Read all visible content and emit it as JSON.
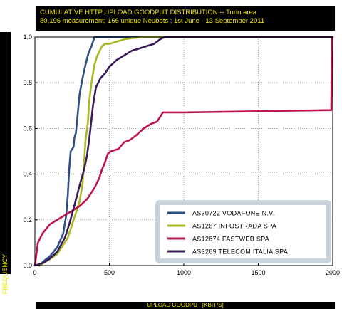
{
  "chart_data": {
    "type": "line",
    "title_line1": "CUMULATIVE HTTP UPLOAD GOODPUT DISTRIBUTION -- Turin area",
    "title_line2": "80,196 measurement; 166 unique Neubots ; 1st June - 13 September 2011",
    "xlabel": "UPLOAD GOODPUT [KBIT/S]",
    "ylabel": "FREQUENCY",
    "xlim": [
      0,
      2000
    ],
    "ylim": [
      0,
      1.0
    ],
    "xticks": [
      "0",
      "500",
      "1000",
      "1500",
      "2000"
    ],
    "xtick_values": [
      0,
      500,
      1000,
      1500,
      2000
    ],
    "yticks": [
      "0.0",
      "0.2",
      "0.4",
      "0.6",
      "0.8",
      "1.0"
    ],
    "ytick_values": [
      0.0,
      0.2,
      0.4,
      0.6,
      0.8,
      1.0
    ],
    "grid": true,
    "legend_position": "lower-right",
    "series": [
      {
        "name": "AS30722 VODAFONE N.V.",
        "color": "#2e4f86",
        "points": [
          [
            30,
            0
          ],
          [
            60,
            0.02
          ],
          [
            100,
            0.04
          ],
          [
            150,
            0.08
          ],
          [
            190,
            0.14
          ],
          [
            210,
            0.22
          ],
          [
            220,
            0.3
          ],
          [
            230,
            0.42
          ],
          [
            240,
            0.5
          ],
          [
            250,
            0.51
          ],
          [
            260,
            0.52
          ],
          [
            265,
            0.56
          ],
          [
            275,
            0.58
          ],
          [
            290,
            0.68
          ],
          [
            300,
            0.75
          ],
          [
            320,
            0.82
          ],
          [
            340,
            0.88
          ],
          [
            360,
            0.93
          ],
          [
            380,
            0.96
          ],
          [
            395,
            0.99
          ],
          [
            400,
            1.0
          ],
          [
            2000,
            1.0
          ]
        ]
      },
      {
        "name": "AS1267 INFOSTRADA SPA",
        "color": "#a8b820",
        "points": [
          [
            30,
            0
          ],
          [
            80,
            0.02
          ],
          [
            150,
            0.05
          ],
          [
            220,
            0.12
          ],
          [
            270,
            0.22
          ],
          [
            300,
            0.28
          ],
          [
            320,
            0.36
          ],
          [
            330,
            0.45
          ],
          [
            340,
            0.55
          ],
          [
            355,
            0.62
          ],
          [
            365,
            0.72
          ],
          [
            380,
            0.8
          ],
          [
            400,
            0.88
          ],
          [
            420,
            0.92
          ],
          [
            450,
            0.96
          ],
          [
            470,
            0.97
          ],
          [
            500,
            0.97
          ],
          [
            550,
            0.98
          ],
          [
            600,
            0.99
          ],
          [
            650,
            0.995
          ],
          [
            720,
            1.0
          ],
          [
            2000,
            1.0
          ]
        ]
      },
      {
        "name": "AS12874 FASTWEB SPA",
        "color": "#c0144f",
        "points": [
          [
            0,
            0
          ],
          [
            20,
            0.1
          ],
          [
            50,
            0.14
          ],
          [
            100,
            0.18
          ],
          [
            150,
            0.2
          ],
          [
            200,
            0.22
          ],
          [
            250,
            0.24
          ],
          [
            300,
            0.26
          ],
          [
            350,
            0.29
          ],
          [
            400,
            0.34
          ],
          [
            430,
            0.38
          ],
          [
            450,
            0.42
          ],
          [
            470,
            0.45
          ],
          [
            490,
            0.49
          ],
          [
            510,
            0.5
          ],
          [
            560,
            0.51
          ],
          [
            600,
            0.54
          ],
          [
            640,
            0.55
          ],
          [
            680,
            0.57
          ],
          [
            730,
            0.6
          ],
          [
            780,
            0.62
          ],
          [
            820,
            0.63
          ],
          [
            860,
            0.67
          ],
          [
            1000,
            0.67
          ],
          [
            1500,
            0.675
          ],
          [
            1990,
            0.68
          ],
          [
            1995,
            1.0
          ],
          [
            2000,
            1.0
          ]
        ]
      },
      {
        "name": "AS3269 TELECOM ITALIA SPA",
        "color": "#3a1a5c",
        "points": [
          [
            0,
            0
          ],
          [
            50,
            0.01
          ],
          [
            100,
            0.03
          ],
          [
            150,
            0.06
          ],
          [
            200,
            0.12
          ],
          [
            230,
            0.18
          ],
          [
            260,
            0.25
          ],
          [
            280,
            0.3
          ],
          [
            300,
            0.35
          ],
          [
            330,
            0.42
          ],
          [
            350,
            0.48
          ],
          [
            370,
            0.58
          ],
          [
            390,
            0.7
          ],
          [
            410,
            0.78
          ],
          [
            440,
            0.82
          ],
          [
            470,
            0.84
          ],
          [
            500,
            0.87
          ],
          [
            550,
            0.9
          ],
          [
            600,
            0.92
          ],
          [
            650,
            0.94
          ],
          [
            700,
            0.95
          ],
          [
            750,
            0.96
          ],
          [
            800,
            0.97
          ],
          [
            840,
            0.99
          ],
          [
            870,
            1.0
          ],
          [
            2000,
            1.0
          ]
        ]
      }
    ]
  }
}
